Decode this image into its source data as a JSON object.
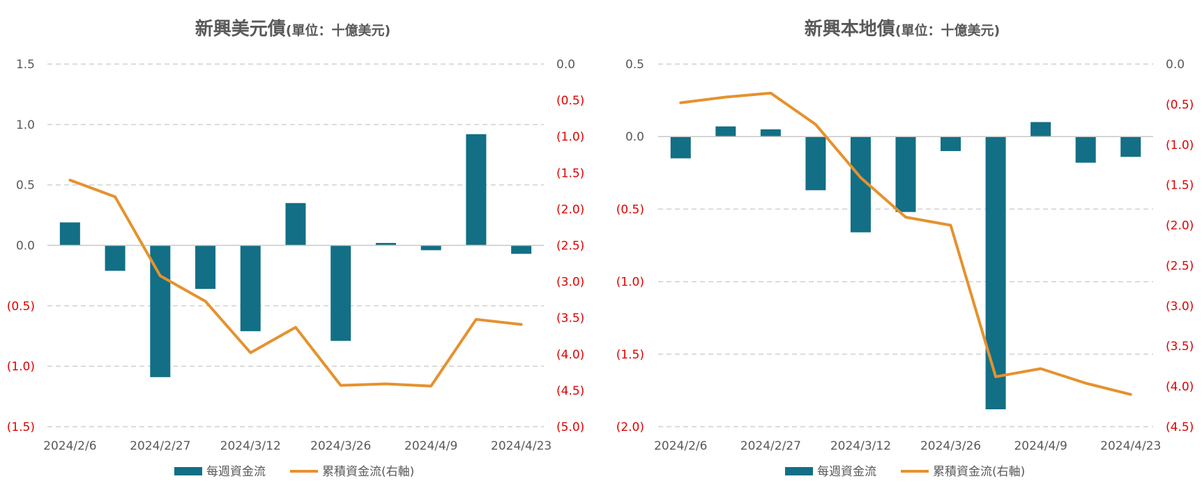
{
  "colors": {
    "bar": "#126f85",
    "line": "#e5922f",
    "negative_tick": "#e00000",
    "text": "#595959",
    "grid": "#d0d0d0"
  },
  "legend": {
    "bar_label": "每週資金流",
    "line_label": "累積資金流(右軸)"
  },
  "chart_data": [
    {
      "type": "bar",
      "title": "新興美元債",
      "subtitle": "(單位：十億美元)",
      "x_tick_labels": [
        "2024/2/6",
        "2024/2/27",
        "2024/3/12",
        "2024/3/26",
        "2024/4/9",
        "2024/4/23"
      ],
      "left_axis": {
        "ylim": [
          -1.5,
          1.5
        ],
        "ticks": [
          1.5,
          1.0,
          0.5,
          0.0,
          -0.5,
          -1.0,
          -1.5
        ],
        "tick_labels": [
          "1.5",
          "1.0",
          "0.5",
          "0.0",
          "(0.5)",
          "(1.0)",
          "(1.5)"
        ]
      },
      "right_axis": {
        "ylim": [
          -5.0,
          0.0
        ],
        "ticks": [
          0.0,
          -0.5,
          -1.0,
          -1.5,
          -2.0,
          -2.5,
          -3.0,
          -3.5,
          -4.0,
          -4.5,
          -5.0
        ],
        "tick_labels": [
          "0.0",
          "(0.5)",
          "(1.0)",
          "(1.5)",
          "(2.0)",
          "(2.5)",
          "(3.0)",
          "(3.5)",
          "(4.0)",
          "(4.5)",
          "(5.0)"
        ]
      },
      "series": [
        {
          "name": "每週資金流",
          "type": "bar",
          "axis": "left",
          "values": [
            0.19,
            -0.21,
            -1.09,
            -0.36,
            -0.71,
            0.35,
            -0.79,
            0.02,
            -0.04,
            0.92,
            -0.07
          ]
        },
        {
          "name": "累積資金流(右軸)",
          "type": "line",
          "axis": "right",
          "values": [
            -1.6,
            -1.83,
            -2.92,
            -3.27,
            -3.98,
            -3.63,
            -4.43,
            -4.41,
            -4.44,
            -3.52,
            -3.59
          ]
        }
      ],
      "grid": true,
      "legend_position": "bottom"
    },
    {
      "type": "bar",
      "title": "新興本地債",
      "subtitle": "(單位：十億美元)",
      "x_tick_labels": [
        "2024/2/6",
        "2024/2/27",
        "2024/3/12",
        "2024/3/26",
        "2024/4/9",
        "2024/4/23"
      ],
      "left_axis": {
        "ylim": [
          -2.0,
          0.5
        ],
        "ticks": [
          0.5,
          0.0,
          -0.5,
          -1.0,
          -1.5,
          -2.0
        ],
        "tick_labels": [
          "0.5",
          "0.0",
          "(0.5)",
          "(1.0)",
          "(1.5)",
          "(2.0)"
        ]
      },
      "right_axis": {
        "ylim": [
          -4.5,
          0.0
        ],
        "ticks": [
          0.0,
          -0.5,
          -1.0,
          -1.5,
          -2.0,
          -2.5,
          -3.0,
          -3.5,
          -4.0,
          -4.5
        ],
        "tick_labels": [
          "0.0",
          "(0.5)",
          "(1.0)",
          "(1.5)",
          "(2.0)",
          "(2.5)",
          "(3.0)",
          "(3.5)",
          "(4.0)",
          "(4.5)"
        ]
      },
      "series": [
        {
          "name": "每週資金流",
          "type": "bar",
          "axis": "left",
          "values": [
            -0.15,
            0.07,
            0.05,
            -0.37,
            -0.66,
            -0.52,
            -0.1,
            -1.88,
            0.1,
            -0.18,
            -0.14
          ]
        },
        {
          "name": "累積資金流(右軸)",
          "type": "line",
          "axis": "right",
          "values": [
            -0.48,
            -0.41,
            -0.36,
            -0.75,
            -1.41,
            -1.9,
            -2.0,
            -3.88,
            -3.78,
            -3.96,
            -4.1
          ]
        }
      ],
      "grid": true,
      "legend_position": "bottom"
    }
  ]
}
